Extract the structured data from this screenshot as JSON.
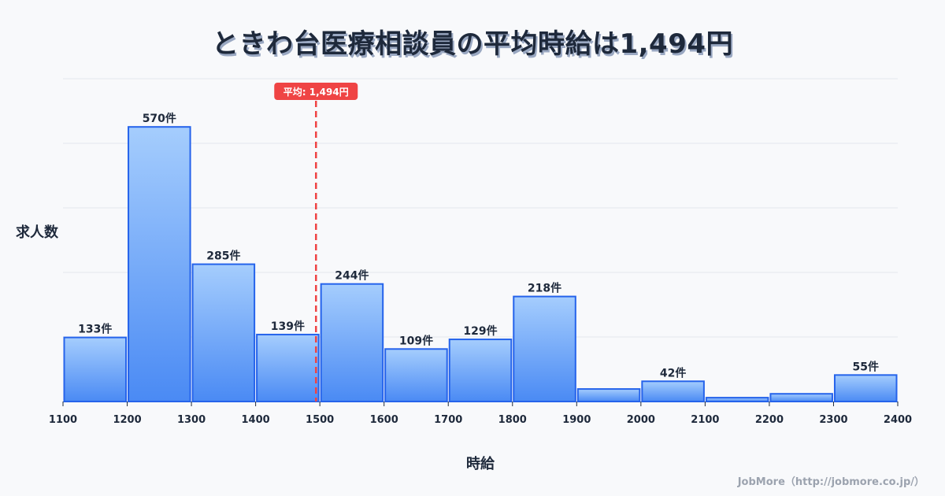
{
  "header": {
    "title": "ときわ台医療相談員の平均時給は1,494円"
  },
  "footer": {
    "credit": "JobMore（http://jobmore.co.jp/）"
  },
  "chart_data": {
    "type": "bar",
    "title": "ときわ台医療相談員の平均時給は1,494円",
    "xlabel": "時給",
    "ylabel": "求人数",
    "x_ticks": [
      "1100",
      "1200",
      "1300",
      "1400",
      "1500",
      "1600",
      "1700",
      "1800",
      "1900",
      "2000",
      "2100",
      "2200",
      "2300",
      "2400"
    ],
    "categories": [
      "1100-1200",
      "1200-1300",
      "1300-1400",
      "1400-1500",
      "1500-1600",
      "1600-1700",
      "1700-1800",
      "1800-1900",
      "1900-2000",
      "2000-2100",
      "2100-2200",
      "2200-2300",
      "2300-2400"
    ],
    "bins": [
      1100,
      1200,
      1300,
      1400,
      1500,
      1600,
      1700,
      1800,
      1900,
      2000,
      2100,
      2200,
      2300,
      2400
    ],
    "values": [
      133,
      570,
      285,
      139,
      244,
      109,
      129,
      218,
      26,
      42,
      8,
      16,
      55
    ],
    "value_labels": [
      "133件",
      "570件",
      "285件",
      "139件",
      "244件",
      "109件",
      "129件",
      "218件",
      "",
      "42件",
      "",
      "",
      "55件"
    ],
    "unit_suffix": "件",
    "xlim": [
      1100,
      2400
    ],
    "ylim": [
      0,
      670
    ],
    "grid": true,
    "gridline_count": 5,
    "annotations": [
      {
        "type": "vline",
        "x": 1494,
        "label": "平均: 1,494円",
        "color": "#ef4444",
        "style": "dashed"
      }
    ],
    "colors": {
      "bar_top": "#a5cdfd",
      "bar_bottom": "#4a8af4",
      "bar_border": "#2563eb",
      "grid": "#e3e6ec",
      "mean_line": "#ef4444"
    }
  }
}
